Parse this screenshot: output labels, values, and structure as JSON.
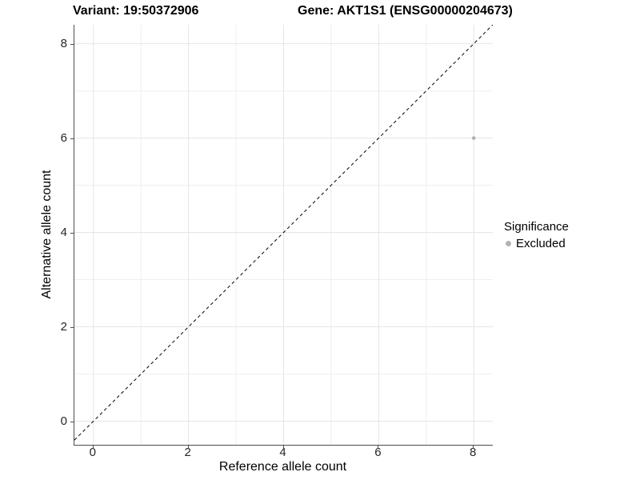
{
  "header": {
    "title_left": "Variant: 19:50372906",
    "title_right": "Gene: AKT1S1 (ENSG00000204673)"
  },
  "chart_data": {
    "type": "scatter",
    "title_left": "Variant: 19:50372906",
    "title_right": "Gene: AKT1S1 (ENSG00000204673)",
    "xlabel": "Reference allele count",
    "ylabel": "Alternative allele count",
    "xlim": [
      -0.4,
      8.4
    ],
    "ylim": [
      -0.5,
      8.4
    ],
    "xticks": [
      0,
      2,
      4,
      6,
      8
    ],
    "yticks": [
      0,
      2,
      4,
      6,
      8
    ],
    "x_minor_ticks": [
      1,
      3,
      5,
      7
    ],
    "y_minor_ticks": [
      1,
      3,
      5,
      7
    ],
    "grid": true,
    "identity_line": {
      "style": "dashed",
      "color": "#000000",
      "dash": "4 3.5"
    },
    "series": [
      {
        "name": "Excluded",
        "color": "#b3b3b3",
        "point_radius": 2.3,
        "points": [
          [
            8,
            6
          ]
        ]
      }
    ],
    "legend": {
      "title": "Significance",
      "position": "right",
      "items": [
        {
          "label": "Excluded",
          "color": "#b3b3b3"
        }
      ]
    },
    "colors": {
      "grid_major": "#e4e4e4",
      "grid_minor": "#efefef",
      "axis_line": "#4d4d4d",
      "tick_text": "#262626",
      "point": "#b3b3b3"
    }
  }
}
